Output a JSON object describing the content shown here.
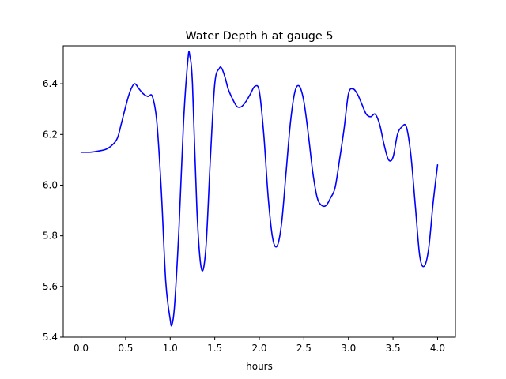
{
  "chart_data": {
    "type": "line",
    "title": "Water Depth h at gauge 5",
    "xlabel": "hours",
    "ylabel": "",
    "xlim": [
      -0.2,
      4.2
    ],
    "ylim": [
      5.4,
      6.55
    ],
    "xticks": [
      0.0,
      0.5,
      1.0,
      1.5,
      2.0,
      2.5,
      3.0,
      3.5,
      4.0
    ],
    "xtick_labels": [
      "0.0",
      "0.5",
      "1.0",
      "1.5",
      "2.0",
      "2.5",
      "3.0",
      "3.5",
      "4.0"
    ],
    "yticks": [
      5.4,
      5.6,
      5.8,
      6.0,
      6.2,
      6.4
    ],
    "ytick_labels": [
      "5.4",
      "5.6",
      "5.8",
      "6.0",
      "6.2",
      "6.4"
    ],
    "grid": false,
    "legend": "none",
    "series": [
      {
        "color": "#0000ff",
        "x": [
          0.0,
          0.1,
          0.2,
          0.3,
          0.4,
          0.45,
          0.5,
          0.55,
          0.6,
          0.65,
          0.7,
          0.75,
          0.8,
          0.85,
          0.9,
          0.95,
          1.0,
          1.02,
          1.05,
          1.1,
          1.15,
          1.2,
          1.22,
          1.25,
          1.3,
          1.35,
          1.4,
          1.45,
          1.5,
          1.55,
          1.58,
          1.62,
          1.65,
          1.7,
          1.75,
          1.8,
          1.85,
          1.9,
          1.95,
          2.0,
          2.05,
          2.1,
          2.15,
          2.2,
          2.25,
          2.3,
          2.35,
          2.4,
          2.45,
          2.5,
          2.55,
          2.6,
          2.65,
          2.7,
          2.75,
          2.8,
          2.85,
          2.9,
          2.95,
          3.0,
          3.05,
          3.1,
          3.15,
          3.2,
          3.25,
          3.3,
          3.35,
          3.4,
          3.45,
          3.5,
          3.55,
          3.6,
          3.65,
          3.7,
          3.75,
          3.8,
          3.85,
          3.9,
          3.95,
          4.0
        ],
        "y": [
          6.13,
          6.13,
          6.135,
          6.145,
          6.18,
          6.24,
          6.31,
          6.37,
          6.4,
          6.38,
          6.36,
          6.35,
          6.35,
          6.25,
          5.98,
          5.62,
          5.47,
          5.45,
          5.53,
          5.84,
          6.25,
          6.5,
          6.51,
          6.4,
          5.9,
          5.67,
          5.75,
          6.1,
          6.4,
          6.46,
          6.46,
          6.42,
          6.38,
          6.34,
          6.31,
          6.31,
          6.33,
          6.36,
          6.39,
          6.37,
          6.2,
          5.95,
          5.79,
          5.76,
          5.85,
          6.05,
          6.25,
          6.37,
          6.39,
          6.33,
          6.2,
          6.05,
          5.95,
          5.92,
          5.92,
          5.95,
          5.99,
          6.1,
          6.22,
          6.36,
          6.38,
          6.36,
          6.32,
          6.28,
          6.27,
          6.28,
          6.24,
          6.16,
          6.1,
          6.11,
          6.2,
          6.23,
          6.23,
          6.12,
          5.92,
          5.72,
          5.68,
          5.75,
          5.93,
          6.08
        ]
      }
    ]
  }
}
